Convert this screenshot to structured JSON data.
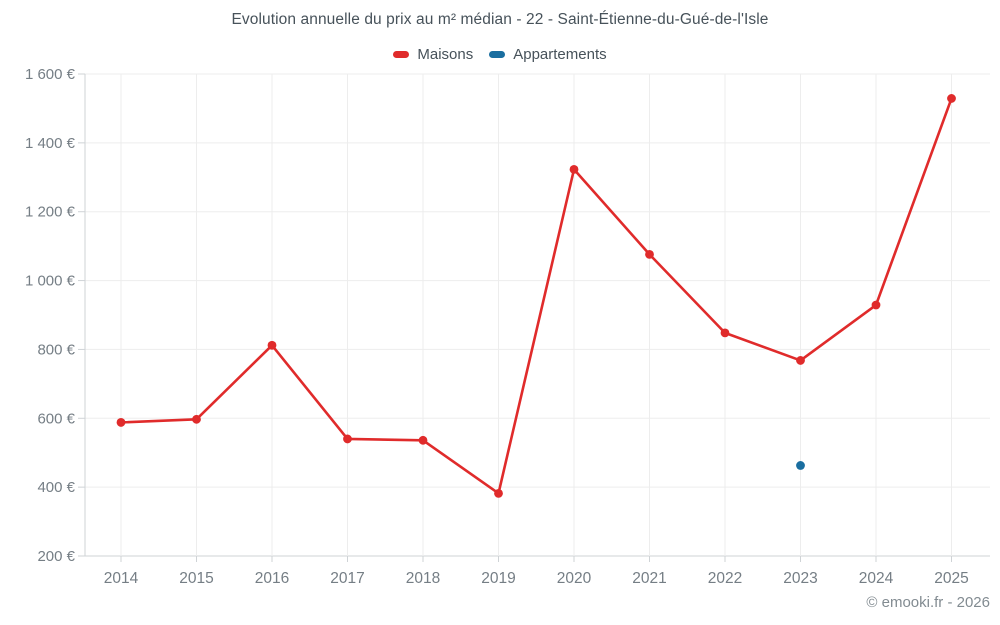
{
  "title": "Evolution annuelle du prix au m² médian - 22 - Saint-Étienne-du-Gué-de-l'Isle",
  "legend": {
    "items": [
      {
        "label": "Maisons",
        "color": "#e02b2b"
      },
      {
        "label": "Appartements",
        "color": "#1a6ea0"
      }
    ]
  },
  "copyright": "© emooki.fr - 2026",
  "colors": {
    "maisons": "#e02b2b",
    "appartements": "#1a6ea0",
    "grid": "#ededed",
    "axis": "#cfd3d6",
    "axis_text": "#757e85",
    "title_text": "#47525a"
  },
  "chart_data": {
    "type": "line",
    "title": "Evolution annuelle du prix au m² médian - 22 - Saint-Étienne-du-Gué-de-l'Isle",
    "categories": [
      "2014",
      "2015",
      "2016",
      "2017",
      "2018",
      "2019",
      "2020",
      "2021",
      "2022",
      "2023",
      "2024",
      "2025"
    ],
    "series": [
      {
        "name": "Maisons",
        "color": "#e02b2b",
        "values": [
          588,
          597,
          812,
          540,
          536,
          382,
          1323,
          1076,
          848,
          768,
          929,
          1529
        ]
      },
      {
        "name": "Appartements",
        "color": "#1a6ea0",
        "values": [
          null,
          null,
          null,
          null,
          null,
          null,
          null,
          null,
          null,
          463,
          null,
          null
        ]
      }
    ],
    "xlabel": "",
    "ylabel": "",
    "ylim": [
      200,
      1600
    ],
    "ytick_step": 200,
    "ytick_suffix": " €",
    "grid": true,
    "legend_position": "top"
  }
}
